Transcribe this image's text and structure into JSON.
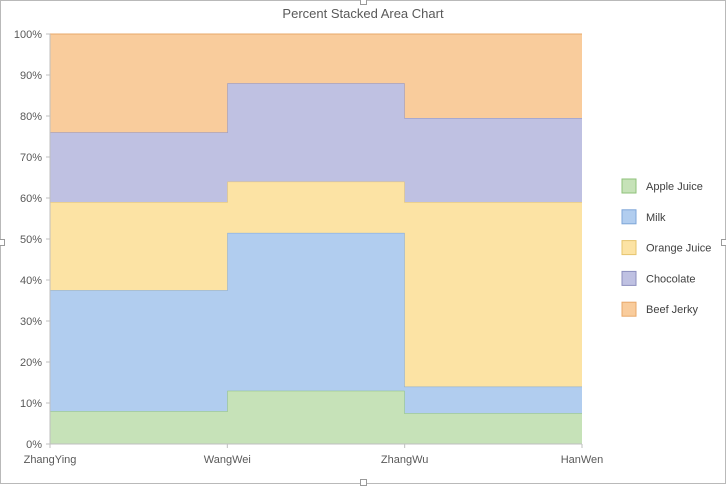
{
  "chart_data": {
    "type": "area",
    "subtype": "percent-stacked-step",
    "title": "Percent Stacked Area Chart",
    "categories": [
      "ZhangYing",
      "WangWei",
      "ZhangWu",
      "HanWen"
    ],
    "y_tick_labels": [
      "0%",
      "10%",
      "20%",
      "30%",
      "40%",
      "50%",
      "60%",
      "70%",
      "80%",
      "90%",
      "100%"
    ],
    "ylim": [
      0,
      100
    ],
    "grid": true,
    "legend_position": "right",
    "series": [
      {
        "name": "Apple Juice",
        "values": [
          8,
          13,
          7.5,
          7.5
        ],
        "color": "#c6e2b8",
        "edge": "#8fc27a"
      },
      {
        "name": "Milk",
        "values": [
          29.5,
          38.5,
          6.5,
          6.5
        ],
        "color": "#b1cdef",
        "edge": "#7ea6d8"
      },
      {
        "name": "Orange Juice",
        "values": [
          21.5,
          12.5,
          45,
          45
        ],
        "color": "#fce3a4",
        "edge": "#e6c46e"
      },
      {
        "name": "Chocolate",
        "values": [
          17,
          24,
          20.5,
          20.5
        ],
        "color": "#bfc1e2",
        "edge": "#8c8fbe"
      },
      {
        "name": "Beef Jerky",
        "values": [
          24,
          12,
          20.5,
          20.5
        ],
        "color": "#f9cc9c",
        "edge": "#e8a86a"
      }
    ]
  }
}
